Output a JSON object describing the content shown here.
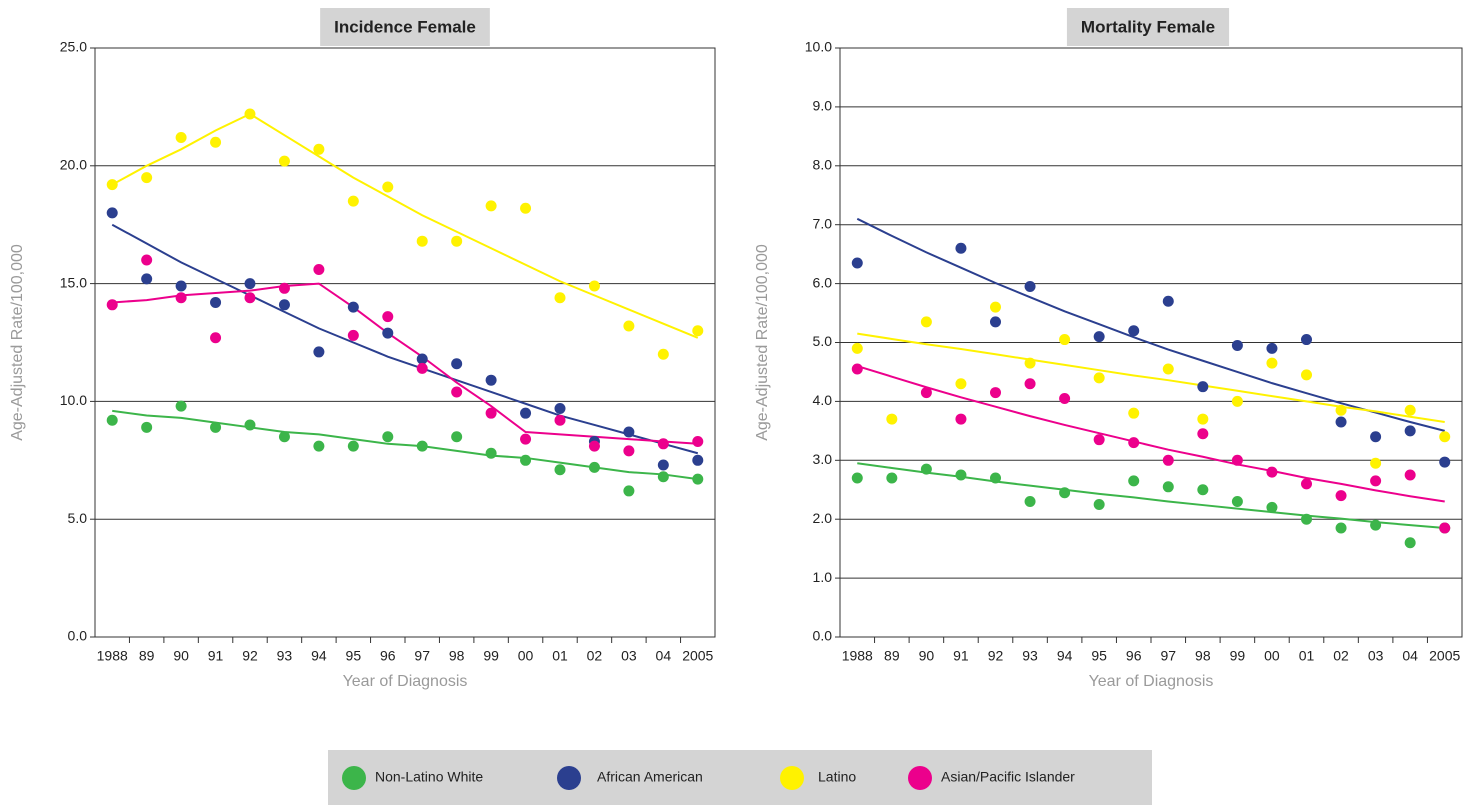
{
  "chart_data": [
    {
      "type": "scatter",
      "title": "Incidence Female",
      "x_label": "Year of Diagnosis",
      "y_label": "Age-Adjusted Rate/100,000",
      "categories": [
        "1988",
        "89",
        "90",
        "91",
        "92",
        "93",
        "94",
        "95",
        "96",
        "97",
        "98",
        "99",
        "00",
        "01",
        "02",
        "03",
        "04",
        "2005"
      ],
      "ylim": [
        0,
        25
      ],
      "yticks": [
        {
          "value": 0,
          "label": "0.0"
        },
        {
          "value": 5,
          "label": "5.0"
        },
        {
          "value": 10,
          "label": "10.0"
        },
        {
          "value": 15,
          "label": "15.0"
        },
        {
          "value": 20,
          "label": "20.0"
        },
        {
          "value": 25,
          "label": "25.0"
        }
      ],
      "grid": true,
      "series": [
        {
          "name": "Non-Latino White",
          "color": "#3cb54a",
          "values": [
            9.2,
            8.9,
            9.8,
            8.9,
            9.0,
            8.5,
            8.1,
            8.1,
            8.5,
            8.1,
            8.5,
            7.8,
            7.5,
            7.1,
            7.2,
            6.2,
            6.8,
            6.7
          ],
          "trend": [
            9.6,
            9.4,
            9.3,
            9.1,
            8.9,
            8.7,
            8.6,
            8.4,
            8.2,
            8.1,
            7.9,
            7.7,
            7.6,
            7.4,
            7.2,
            7.0,
            6.9,
            6.7
          ]
        },
        {
          "name": "African American",
          "color": "#2b3f8f",
          "values": [
            18.0,
            15.2,
            14.9,
            14.2,
            15.0,
            14.1,
            12.1,
            14.0,
            12.9,
            11.8,
            11.6,
            10.9,
            9.5,
            9.7,
            8.3,
            8.7,
            7.3,
            7.5
          ],
          "trend": [
            17.5,
            16.7,
            15.9,
            15.2,
            14.5,
            13.8,
            13.1,
            12.5,
            11.9,
            11.4,
            10.9,
            10.4,
            9.9,
            9.4,
            9.0,
            8.6,
            8.2,
            7.8
          ]
        },
        {
          "name": "Latino",
          "color": "#fff200",
          "values": [
            19.2,
            19.5,
            21.2,
            21.0,
            22.2,
            20.2,
            20.7,
            18.5,
            19.1,
            16.8,
            16.8,
            18.3,
            18.2,
            14.4,
            14.9,
            13.2,
            12.0,
            13.0
          ],
          "trend": [
            19.2,
            20.0,
            20.7,
            21.5,
            22.2,
            21.3,
            20.4,
            19.5,
            18.7,
            17.9,
            17.2,
            16.5,
            15.8,
            15.1,
            14.5,
            13.9,
            13.3,
            12.7
          ]
        },
        {
          "name": "Asian/Pacific Islander",
          "color": "#ec008c",
          "values": [
            14.1,
            16.0,
            14.4,
            12.7,
            14.4,
            14.8,
            15.6,
            12.8,
            13.6,
            11.4,
            10.4,
            9.5,
            8.4,
            9.2,
            8.1,
            7.9,
            8.2,
            8.3
          ],
          "trend": [
            14.2,
            14.3,
            14.5,
            14.6,
            14.7,
            14.9,
            15.0,
            14.0,
            12.9,
            11.9,
            10.8,
            9.8,
            8.7,
            8.6,
            8.5,
            8.4,
            8.3,
            8.2
          ]
        }
      ]
    },
    {
      "type": "scatter",
      "title": "Mortality Female",
      "x_label": "Year of Diagnosis",
      "y_label": "Age-Adjusted Rate/100,000",
      "categories": [
        "1988",
        "89",
        "90",
        "91",
        "92",
        "93",
        "94",
        "95",
        "96",
        "97",
        "98",
        "99",
        "00",
        "01",
        "02",
        "03",
        "04",
        "2005"
      ],
      "ylim": [
        0,
        10
      ],
      "yticks": [
        {
          "value": 0,
          "label": "0.0"
        },
        {
          "value": 1,
          "label": "1.0"
        },
        {
          "value": 2,
          "label": "2.0"
        },
        {
          "value": 3,
          "label": "3.0"
        },
        {
          "value": 4,
          "label": "4.0"
        },
        {
          "value": 5,
          "label": "5.0"
        },
        {
          "value": 6,
          "label": "6.0"
        },
        {
          "value": 7,
          "label": "7.0"
        },
        {
          "value": 8,
          "label": "8.0"
        },
        {
          "value": 9,
          "label": "9.0"
        },
        {
          "value": 10,
          "label": "10.0"
        }
      ],
      "grid": true,
      "series": [
        {
          "name": "Non-Latino White",
          "color": "#3cb54a",
          "values": [
            2.7,
            2.7,
            2.85,
            2.75,
            2.7,
            2.3,
            2.45,
            2.25,
            2.65,
            2.55,
            2.5,
            2.3,
            2.2,
            2.0,
            1.85,
            1.9,
            1.6,
            1.85
          ],
          "trend": [
            2.95,
            2.87,
            2.79,
            2.72,
            2.64,
            2.57,
            2.5,
            2.43,
            2.37,
            2.3,
            2.24,
            2.18,
            2.12,
            2.06,
            2.01,
            1.95,
            1.9,
            1.85
          ]
        },
        {
          "name": "African American",
          "color": "#2b3f8f",
          "values": [
            6.35,
            null,
            null,
            6.6,
            5.35,
            5.95,
            null,
            5.1,
            5.2,
            5.7,
            4.25,
            4.95,
            4.9,
            5.05,
            3.65,
            3.4,
            3.5,
            2.97
          ],
          "trend": [
            7.1,
            6.81,
            6.53,
            6.27,
            6.01,
            5.77,
            5.53,
            5.31,
            5.09,
            4.88,
            4.69,
            4.5,
            4.31,
            4.14,
            3.97,
            3.81,
            3.65,
            3.5
          ]
        },
        {
          "name": "Latino",
          "color": "#fff200",
          "values": [
            4.9,
            3.7,
            5.35,
            4.3,
            5.6,
            4.65,
            5.05,
            4.4,
            3.8,
            4.55,
            3.7,
            4.0,
            4.65,
            4.45,
            3.85,
            2.95,
            3.85,
            3.4
          ],
          "trend": [
            5.15,
            5.06,
            4.97,
            4.89,
            4.8,
            4.71,
            4.62,
            4.53,
            4.44,
            4.36,
            4.27,
            4.18,
            4.09,
            4.0,
            3.91,
            3.83,
            3.74,
            3.65
          ]
        },
        {
          "name": "Asian/Pacific Islander",
          "color": "#ec008c",
          "values": [
            4.55,
            null,
            4.15,
            3.7,
            4.15,
            4.3,
            4.05,
            3.35,
            3.3,
            3.0,
            3.45,
            3.0,
            2.8,
            2.6,
            2.4,
            2.65,
            2.75,
            1.85
          ],
          "trend": [
            4.6,
            4.42,
            4.24,
            4.07,
            3.91,
            3.75,
            3.6,
            3.46,
            3.32,
            3.18,
            3.06,
            2.93,
            2.82,
            2.7,
            2.6,
            2.49,
            2.39,
            2.3
          ]
        }
      ]
    }
  ]
}
